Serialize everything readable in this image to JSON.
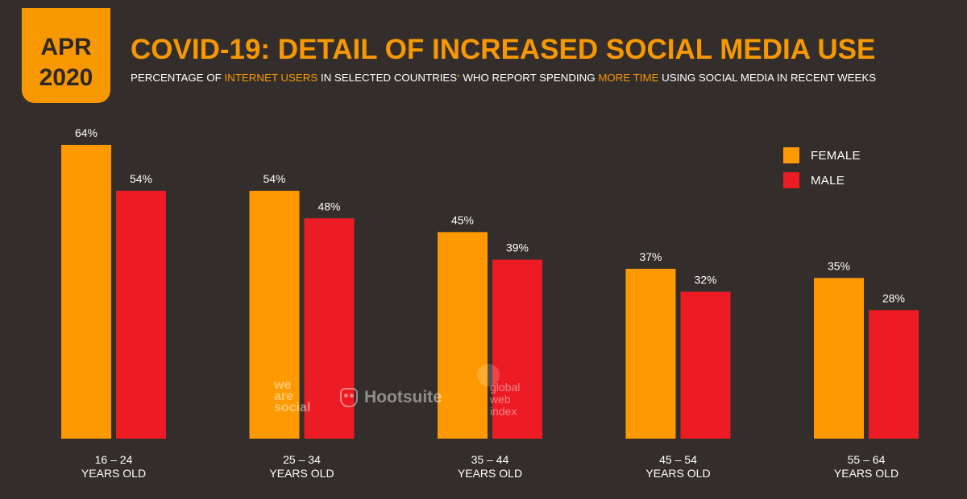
{
  "header": {
    "badge_month": "APR",
    "badge_year": "2020",
    "title": "COVID-19: DETAIL OF INCREASED SOCIAL MEDIA USE",
    "subtitle_parts": {
      "p1": "PERCENTAGE OF ",
      "h1": "INTERNET USERS",
      "p2": " IN SELECTED COUNTRIES",
      "star": "*",
      "p3": " WHO REPORT SPENDING ",
      "h2": "MORE TIME",
      "p4": " USING SOCIAL MEDIA IN RECENT WEEKS"
    }
  },
  "colors": {
    "background": "#332e2b",
    "accent": "#f79800",
    "female": "#fe9a00",
    "male": "#ed1c24",
    "text": "#ffffff"
  },
  "legend": {
    "female": "FEMALE",
    "male": "MALE"
  },
  "watermarks": {
    "we_are_social": [
      "we",
      "are",
      "social"
    ],
    "hootsuite": "Hootsuite",
    "gwi": [
      "global",
      "web",
      "index"
    ]
  },
  "chart_data": {
    "type": "bar",
    "categories": [
      [
        "16 – 24",
        "YEARS OLD"
      ],
      [
        "25 – 34",
        "YEARS OLD"
      ],
      [
        "35 – 44",
        "YEARS OLD"
      ],
      [
        "45 – 54",
        "YEARS OLD"
      ],
      [
        "55 – 64",
        "YEARS OLD"
      ]
    ],
    "series": [
      {
        "name": "FEMALE",
        "values": [
          64,
          54,
          45,
          37,
          35
        ],
        "color": "#fe9a00"
      },
      {
        "name": "MALE",
        "values": [
          54,
          48,
          39,
          32,
          28
        ],
        "color": "#ed1c24"
      }
    ],
    "value_suffix": "%",
    "ylim": [
      0,
      64
    ],
    "grid": false,
    "legend_position": "top-right"
  }
}
